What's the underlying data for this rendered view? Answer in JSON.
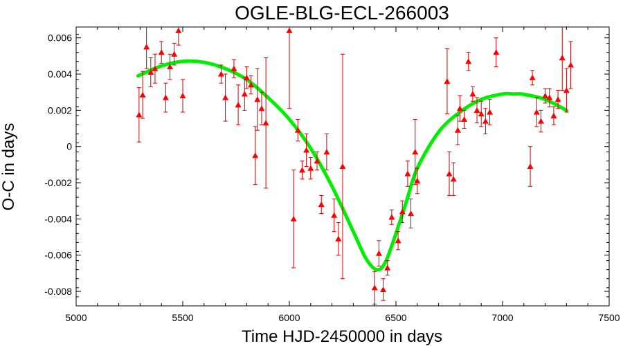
{
  "chart_data": {
    "type": "scatter",
    "title": "OGLE-BLG-ECL-266003",
    "xlabel": "Time HJD-2450000 in days",
    "ylabel": "O-C in days",
    "xlim": [
      5000,
      7500
    ],
    "ylim": [
      -0.0088,
      0.0066
    ],
    "x_ticks": [
      5000,
      5500,
      6000,
      6500,
      7000,
      7500
    ],
    "x_tick_labels": [
      "5000",
      "5500",
      "6000",
      "6500",
      "7000",
      "7500"
    ],
    "y_ticks": [
      -0.008,
      -0.006,
      -0.004,
      -0.002,
      0,
      0.002,
      0.004,
      0.006
    ],
    "y_tick_labels": [
      "-0.008",
      "-0.006",
      "-0.004",
      "-0.002",
      "0",
      "0.002",
      "0.004",
      "0.006"
    ],
    "grid": false,
    "colors": {
      "points": "#ff0000",
      "error_bars": "#cc0000",
      "fit": "#00ee00",
      "axes": "#000000"
    },
    "series": [
      {
        "kind": "points_with_error_bars",
        "marker": "triangle",
        "points": [
          {
            "x": 5295,
            "y": 0.00175,
            "err": 0.0015
          },
          {
            "x": 5312,
            "y": 0.00285,
            "err": 0.0013
          },
          {
            "x": 5330,
            "y": 0.0055,
            "err": 0.0012
          },
          {
            "x": 5350,
            "y": 0.0041,
            "err": 0.0008
          },
          {
            "x": 5370,
            "y": 0.0043,
            "err": 0.0008
          },
          {
            "x": 5400,
            "y": 0.0052,
            "err": 0.0006
          },
          {
            "x": 5420,
            "y": 0.0027,
            "err": 0.0008
          },
          {
            "x": 5440,
            "y": 0.0044,
            "err": 0.0007
          },
          {
            "x": 5460,
            "y": 0.0051,
            "err": 0.0006
          },
          {
            "x": 5480,
            "y": 0.0064,
            "err": 0.0008
          },
          {
            "x": 5500,
            "y": 0.0028,
            "err": 0.0009
          },
          {
            "x": 5680,
            "y": 0.004,
            "err": 0.0005
          },
          {
            "x": 5700,
            "y": 0.0027,
            "err": 0.0013
          },
          {
            "x": 5740,
            "y": 0.0043,
            "err": 0.0005
          },
          {
            "x": 5760,
            "y": 0.0023,
            "err": 0.0011
          },
          {
            "x": 5790,
            "y": 0.0029,
            "err": 0.0009
          },
          {
            "x": 5800,
            "y": 0.0038,
            "err": 0.0006
          },
          {
            "x": 5820,
            "y": 0.0034,
            "err": 0.0005
          },
          {
            "x": 5840,
            "y": -0.0005,
            "err": 0.0016
          },
          {
            "x": 5850,
            "y": 0.0026,
            "err": 0.0017
          },
          {
            "x": 5870,
            "y": 0.0021,
            "err": 0.0009
          },
          {
            "x": 5890,
            "y": 0.0013,
            "err": 0.0036
          },
          {
            "x": 6000,
            "y": 0.0064,
            "err": 0.0043
          },
          {
            "x": 6020,
            "y": -0.004,
            "err": 0.0027
          },
          {
            "x": 6040,
            "y": 0.0009,
            "err": 0.0006
          },
          {
            "x": 6060,
            "y": -0.0013,
            "err": 0.0005
          },
          {
            "x": 6080,
            "y": -0.0002,
            "err": 0.0009
          },
          {
            "x": 6100,
            "y": -0.0012,
            "err": 0.0006
          },
          {
            "x": 6130,
            "y": -0.0008,
            "err": 0.0005
          },
          {
            "x": 6150,
            "y": -0.0032,
            "err": 0.0005
          },
          {
            "x": 6175,
            "y": -0.0003,
            "err": 0.001
          },
          {
            "x": 6210,
            "y": -0.0038,
            "err": 0.0009
          },
          {
            "x": 6230,
            "y": -0.0051,
            "err": 0.0009
          },
          {
            "x": 6250,
            "y": -0.0011,
            "err": 0.0062
          },
          {
            "x": 6400,
            "y": -0.0078,
            "err": 0.0009
          },
          {
            "x": 6420,
            "y": -0.0059,
            "err": 0.0007
          },
          {
            "x": 6440,
            "y": -0.0079,
            "err": 0.0006
          },
          {
            "x": 6460,
            "y": -0.0067,
            "err": 0.0004
          },
          {
            "x": 6480,
            "y": -0.0039,
            "err": 0.0004
          },
          {
            "x": 6510,
            "y": -0.0052,
            "err": 0.0005
          },
          {
            "x": 6530,
            "y": -0.0036,
            "err": 0.0006
          },
          {
            "x": 6555,
            "y": -0.0015,
            "err": 0.0007
          },
          {
            "x": 6570,
            "y": -0.0037,
            "err": 0.0008
          },
          {
            "x": 6590,
            "y": -0.0003,
            "err": 0.0018
          },
          {
            "x": 6600,
            "y": -0.0019,
            "err": 0.0007
          },
          {
            "x": 6740,
            "y": 0.0036,
            "err": 0.0018
          },
          {
            "x": 6750,
            "y": -0.0015,
            "err": 0.0012
          },
          {
            "x": 6770,
            "y": -0.0018,
            "err": 0.0009
          },
          {
            "x": 6790,
            "y": 0.0009,
            "err": 0.0008
          },
          {
            "x": 6800,
            "y": 0.0021,
            "err": 0.0007
          },
          {
            "x": 6820,
            "y": 0.0015,
            "err": 0.0005
          },
          {
            "x": 6840,
            "y": 0.0047,
            "err": 0.0005
          },
          {
            "x": 6860,
            "y": 0.0029,
            "err": 0.0004
          },
          {
            "x": 6880,
            "y": 0.002,
            "err": 0.0007
          },
          {
            "x": 6900,
            "y": 0.0018,
            "err": 0.0007
          },
          {
            "x": 6920,
            "y": 0.0014,
            "err": 0.0007
          },
          {
            "x": 6940,
            "y": 0.0019,
            "err": 0.0007
          },
          {
            "x": 6970,
            "y": 0.0052,
            "err": 0.0008
          },
          {
            "x": 7130,
            "y": -0.0011,
            "err": 0.0011
          },
          {
            "x": 7140,
            "y": 0.0038,
            "err": 0.0004
          },
          {
            "x": 7160,
            "y": 0.0019,
            "err": 0.0008
          },
          {
            "x": 7180,
            "y": 0.0014,
            "err": 0.0006
          },
          {
            "x": 7200,
            "y": 0.0028,
            "err": 0.0004
          },
          {
            "x": 7220,
            "y": 0.0027,
            "err": 0.0005
          },
          {
            "x": 7240,
            "y": 0.0017,
            "err": 0.0005
          },
          {
            "x": 7260,
            "y": 0.0026,
            "err": 0.0005
          },
          {
            "x": 7280,
            "y": 0.0049,
            "err": 0.0018
          },
          {
            "x": 7300,
            "y": 0.0031,
            "err": 0.0012
          },
          {
            "x": 7320,
            "y": 0.0045,
            "err": 0.0013
          }
        ]
      },
      {
        "kind": "fit_curve",
        "points": [
          {
            "x": 5290,
            "y": 0.0039
          },
          {
            "x": 5400,
            "y": 0.00445
          },
          {
            "x": 5500,
            "y": 0.0047
          },
          {
            "x": 5600,
            "y": 0.00465
          },
          {
            "x": 5700,
            "y": 0.0043
          },
          {
            "x": 5800,
            "y": 0.0037
          },
          {
            "x": 5900,
            "y": 0.0027
          },
          {
            "x": 6000,
            "y": 0.0015
          },
          {
            "x": 6100,
            "y": -0.0001
          },
          {
            "x": 6200,
            "y": -0.0022
          },
          {
            "x": 6300,
            "y": -0.0047
          },
          {
            "x": 6360,
            "y": -0.0062
          },
          {
            "x": 6410,
            "y": -0.0068
          },
          {
            "x": 6450,
            "y": -0.0064
          },
          {
            "x": 6500,
            "y": -0.0048
          },
          {
            "x": 6550,
            "y": -0.003
          },
          {
            "x": 6600,
            "y": -0.0012
          },
          {
            "x": 6700,
            "y": 0.0008
          },
          {
            "x": 6800,
            "y": 0.0019
          },
          {
            "x": 6900,
            "y": 0.0026
          },
          {
            "x": 7000,
            "y": 0.0029
          },
          {
            "x": 7050,
            "y": 0.0029
          },
          {
            "x": 7100,
            "y": 0.00288
          },
          {
            "x": 7200,
            "y": 0.0026
          },
          {
            "x": 7300,
            "y": 0.002
          }
        ]
      }
    ]
  }
}
